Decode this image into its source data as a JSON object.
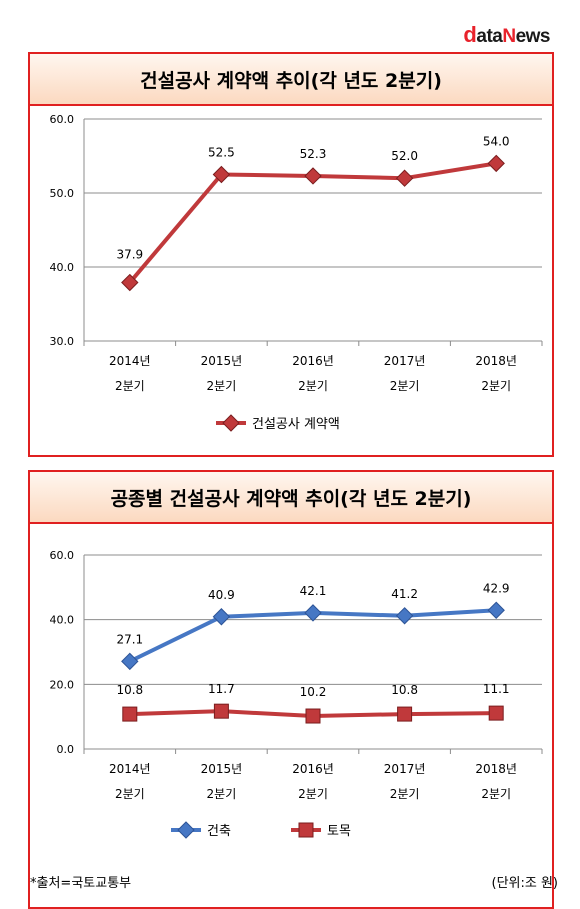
{
  "logo": {
    "part1": "d",
    "part2": "ata",
    "part3": "N",
    "part4": "ews"
  },
  "chart_data": [
    {
      "type": "line",
      "title": "건설공사 계약액 추이(각 년도 2분기)",
      "categories": [
        [
          "2014년",
          "2분기"
        ],
        [
          "2015년",
          "2분기"
        ],
        [
          "2016년",
          "2분기"
        ],
        [
          "2017년",
          "2분기"
        ],
        [
          "2018년",
          "2분기"
        ]
      ],
      "series": [
        {
          "name": "건설공사 계약액",
          "values": [
            37.9,
            52.5,
            52.3,
            52.0,
            54.0
          ],
          "color": "#c0393b",
          "marker": "diamond"
        }
      ],
      "yticks": [
        "30.0",
        "40.0",
        "50.0",
        "60.0"
      ],
      "ylim": [
        30,
        60
      ],
      "grid": true,
      "legend": "bottom"
    },
    {
      "type": "line",
      "title": "공종별 건설공사 계약액 추이(각 년도 2분기)",
      "categories": [
        [
          "2014년",
          "2분기"
        ],
        [
          "2015년",
          "2분기"
        ],
        [
          "2016년",
          "2분기"
        ],
        [
          "2017년",
          "2분기"
        ],
        [
          "2018년",
          "2분기"
        ]
      ],
      "series": [
        {
          "name": "건축",
          "values": [
            27.1,
            40.9,
            42.1,
            41.2,
            42.9
          ],
          "color": "#4677c4",
          "marker": "diamond"
        },
        {
          "name": "토목",
          "values": [
            10.8,
            11.7,
            10.2,
            10.8,
            11.1
          ],
          "color": "#c0393b",
          "marker": "square"
        }
      ],
      "yticks": [
        "0.0",
        "20.0",
        "40.0",
        "60.0"
      ],
      "ylim": [
        0,
        60
      ],
      "grid": true,
      "legend": "bottom"
    }
  ],
  "footer": {
    "source": "*출처=국토교통부",
    "unit": "(단위:조 원)"
  }
}
